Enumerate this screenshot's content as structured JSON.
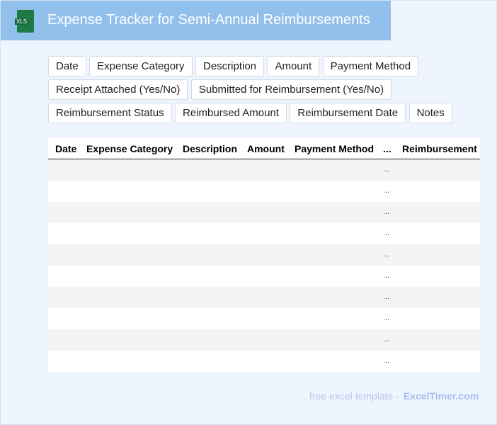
{
  "header": {
    "title": "Expense Tracker for Semi-Annual Reimbursements",
    "icon": "xls-file-icon",
    "icon_label": "XLS"
  },
  "tags": [
    "Date",
    "Expense Category",
    "Description",
    "Amount",
    "Payment Method",
    "Receipt Attached (Yes/No)",
    "Submitted for Reimbursement (Yes/No)",
    "Reimbursement Status",
    "Reimbursed Amount",
    "Reimbursement Date",
    "Notes"
  ],
  "table": {
    "columns": [
      "Date",
      "Expense Category",
      "Description",
      "Amount",
      "Payment Method",
      "...",
      "Reimbursement"
    ],
    "rows": [
      "...",
      "...",
      "...",
      "...",
      "...",
      "...",
      "...",
      "...",
      "...",
      "..."
    ]
  },
  "footer": {
    "text": "free excel template -",
    "brand": "ExcelTimer.com"
  }
}
